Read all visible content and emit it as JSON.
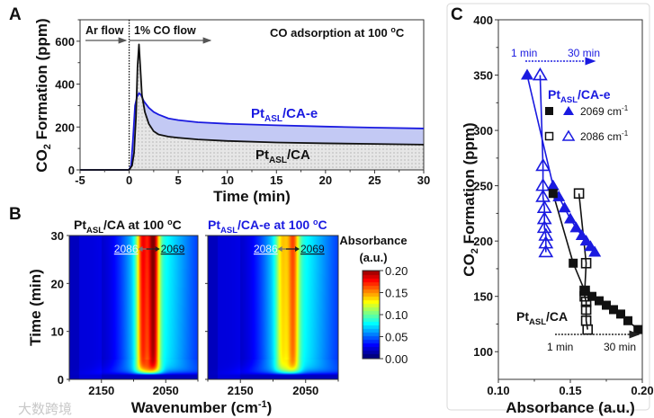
{
  "panel_labels": {
    "a": "A",
    "b": "B",
    "c": "C"
  },
  "watermark": "大数跨境",
  "colors": {
    "blue": "#1a1ae0",
    "black": "#111111",
    "blue_fill": "#b9bff2",
    "gray_fill": "#e2e2e2"
  },
  "chart_data": [
    {
      "id": "A",
      "type": "line",
      "title": "CO adsorption at 100 °C",
      "title_parts": {
        "pre": "CO adsorption at 100 ",
        "sup": "o",
        "post": "C"
      },
      "xlabel": "Time (min)",
      "ylabel": "CO2 Formation (ppm)",
      "ylabel_parts": {
        "a": "CO",
        "sub": "2",
        "b": " Formation (ppm)"
      },
      "xlim": [
        -5,
        30
      ],
      "ylim": [
        0,
        700
      ],
      "xticks": [
        "-5",
        "0",
        "5",
        "10",
        "15",
        "20",
        "25",
        "30"
      ],
      "yticks": [
        "0",
        "200",
        "400",
        "600"
      ],
      "annotations": {
        "ar_flow": "Ar flow",
        "co_flow": "1% CO flow"
      },
      "series": [
        {
          "name": "PtASL/CA",
          "label": {
            "main": "Pt",
            "sub": "ASL",
            "rest": "/CA"
          },
          "color": "#111111",
          "x": [
            -5,
            -0.1,
            0,
            0.3,
            0.5,
            0.7,
            0.85,
            1.0,
            1.15,
            1.3,
            1.6,
            2,
            2.5,
            3,
            4,
            5,
            7,
            10,
            15,
            20,
            25,
            30
          ],
          "y": [
            0,
            0,
            0,
            20,
            80,
            250,
            480,
            585,
            470,
            350,
            270,
            215,
            180,
            165,
            155,
            150,
            142,
            135,
            128,
            124,
            121,
            118
          ]
        },
        {
          "name": "PtASL/CA-e",
          "label": {
            "main": "Pt",
            "sub": "ASL",
            "rest": "/CA-e"
          },
          "color": "#1a1ae0",
          "x": [
            -5,
            0,
            0.2,
            0.4,
            0.6,
            0.8,
            1.0,
            1.2,
            1.5,
            2,
            2.5,
            3,
            4,
            5,
            7,
            10,
            15,
            20,
            25,
            30
          ],
          "y": [
            0,
            0,
            20,
            150,
            300,
            340,
            358,
            350,
            320,
            290,
            270,
            258,
            240,
            232,
            222,
            215,
            208,
            202,
            197,
            193
          ]
        }
      ]
    },
    {
      "id": "B",
      "type": "heatmap",
      "xlabel_parts": {
        "a": "Wavenumber (cm",
        "sup": "-1",
        "b": ")"
      },
      "ylabel": "Time (min)",
      "xlim": [
        2200,
        2000
      ],
      "ylim": [
        0,
        30
      ],
      "xticks": [
        "2150",
        "2050"
      ],
      "yticks": [
        "0",
        "10",
        "20",
        "30"
      ],
      "colorbar": {
        "title": "Absorbance",
        "unit": "(a.u.)",
        "range": [
          0,
          0.2
        ],
        "ticks": [
          "0.00",
          "0.05",
          "0.10",
          "0.15",
          "0.20"
        ]
      },
      "maps": [
        {
          "title": {
            "main": "Pt",
            "sub": "ASL",
            "rest": "/CA at 100 ",
            "sup": "o",
            "end": "C"
          },
          "color": "#111111",
          "peaks": {
            "p2086": 0.09,
            "p2069": 0.115,
            "broad": 0.075
          },
          "marks": {
            "left": "2086",
            "right": "2069"
          }
        },
        {
          "title": {
            "main": "Pt",
            "sub": "ASL",
            "rest": "/CA-e at 100 ",
            "sup": "o",
            "end": "C"
          },
          "color": "#1a1ae0",
          "peaks": {
            "p2086": 0.05,
            "p2069": 0.075,
            "broad": 0.075
          },
          "marks": {
            "left": "2086",
            "right": "2069"
          }
        }
      ]
    },
    {
      "id": "C",
      "type": "scatter",
      "xlabel": "Absorbance (a.u.)",
      "ylabel_parts": {
        "a": "CO",
        "sub": "2",
        "b": " Formation (ppm)"
      },
      "xlim": [
        0.1,
        0.2
      ],
      "ylim": [
        75,
        400
      ],
      "xticks": [
        "0.10",
        "0.15",
        "0.20"
      ],
      "yticks": [
        "100",
        "150",
        "200",
        "250",
        "300",
        "350",
        "400"
      ],
      "legend": [
        {
          "label": "2069 cm",
          "sup": "-1"
        },
        {
          "label": "2086 cm",
          "sup": "-1"
        }
      ],
      "group_labels": {
        "cae": {
          "main": "Pt",
          "sub": "ASL",
          "rest": "/CA-e"
        },
        "ca": {
          "main": "Pt",
          "sub": "ASL",
          "rest": "/CA"
        }
      },
      "time_arrows": {
        "top_start": "1 min",
        "top_end": "30 min",
        "bottom_start": "1 min",
        "bottom_end": "30 min"
      },
      "series": [
        {
          "name": "PtASL/CA-e 2069",
          "marker": "triangle",
          "filled": true,
          "color": "#1a1ae0",
          "x": [
            0.12,
            0.138,
            0.142,
            0.146,
            0.15,
            0.154,
            0.158,
            0.161,
            0.164,
            0.167
          ],
          "y": [
            350,
            250,
            240,
            230,
            220,
            212,
            205,
            200,
            195,
            190
          ]
        },
        {
          "name": "PtASL/CA-e 2086",
          "marker": "triangle",
          "filled": false,
          "color": "#1a1ae0",
          "x": [
            0.129,
            0.131,
            0.131,
            0.131,
            0.132,
            0.132,
            0.132,
            0.133,
            0.133,
            0.133
          ],
          "y": [
            350,
            268,
            250,
            240,
            230,
            220,
            212,
            205,
            198,
            190
          ]
        },
        {
          "name": "PtASL/CA 2069",
          "marker": "square",
          "filled": true,
          "color": "#111111",
          "x": [
            0.138,
            0.152,
            0.16,
            0.165,
            0.17,
            0.175,
            0.18,
            0.185,
            0.19,
            0.197
          ],
          "y": [
            243,
            180,
            155,
            150,
            146,
            142,
            138,
            134,
            128,
            120
          ]
        },
        {
          "name": "PtASL/CA 2086",
          "marker": "square",
          "filled": false,
          "color": "#111111",
          "x": [
            0.156,
            0.161,
            0.16,
            0.16,
            0.161,
            0.161,
            0.161,
            0.162
          ],
          "y": [
            243,
            180,
            155,
            150,
            145,
            138,
            128,
            120
          ]
        }
      ]
    }
  ]
}
